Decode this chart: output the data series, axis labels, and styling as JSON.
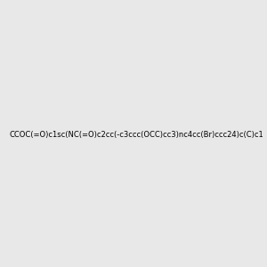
{
  "smiles": "CCOC(=O)c1sc(NC(=O)c2cc(-c3ccc(OCC)cc3)nc4cc(Br)ccc24)c(C)c1",
  "title": "",
  "bg_color": "#e8e8e8",
  "img_size": [
    300,
    300
  ]
}
